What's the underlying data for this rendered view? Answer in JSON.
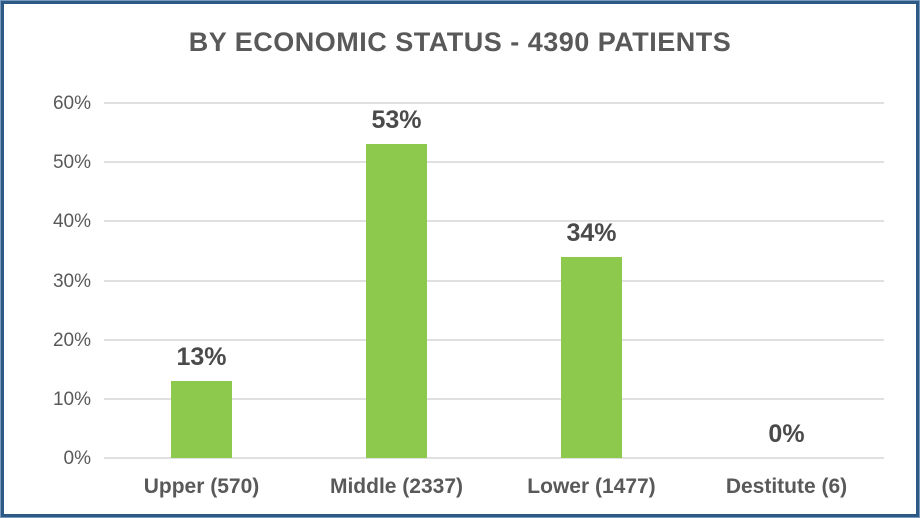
{
  "chart_data": {
    "type": "bar",
    "title": "BY ECONOMIC STATUS - 4390 PATIENTS",
    "categories": [
      "Upper (570)",
      "Middle (2337)",
      "Lower (1477)",
      "Destitute (6)"
    ],
    "values": [
      13,
      53,
      34,
      0
    ],
    "data_labels": [
      "13%",
      "53%",
      "34%",
      "0%"
    ],
    "y_ticks": [
      "0%",
      "10%",
      "20%",
      "30%",
      "40%",
      "50%",
      "60%"
    ],
    "ylim": [
      0,
      60
    ],
    "xlabel": "",
    "ylabel": "",
    "grid": true,
    "legend_position": "none",
    "total_patients": "4390",
    "colors": {
      "bar_fill": "#8dc94d",
      "title_text": "#595959",
      "axis_tick_text": "#595959",
      "data_label_text": "#4a4a4a",
      "gridline": "#e0e0e0",
      "frame_border": "#2d5986",
      "frame_border_light": "#7a99be",
      "background": "#ffffff"
    }
  }
}
